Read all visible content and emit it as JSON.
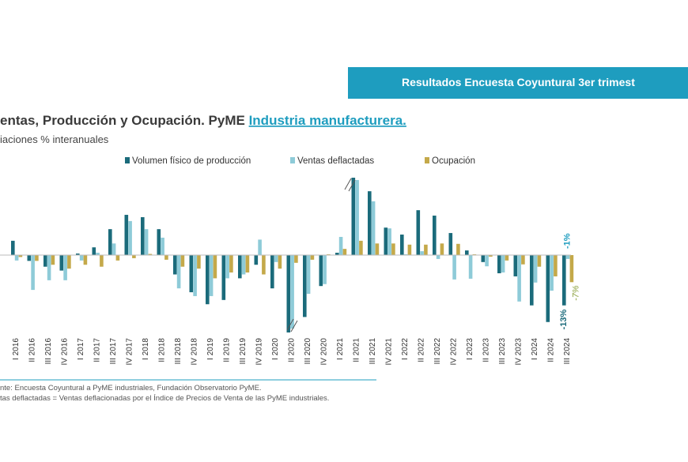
{
  "header": "Resultados Encuesta Coyuntural 3er trimest",
  "chart_data": {
    "type": "bar",
    "title": "entas, Producción y Ocupación. PyME ",
    "title_link": "Industria manufacturera.",
    "subtitle": "iaciones % interanuales",
    "categories": [
      "I 2016",
      "II 2016",
      "III 2016",
      "IV 2016",
      "I 2017",
      "II 2017",
      "III 2017",
      "IV 2017",
      "I 2018",
      "II 2018",
      "III 2018",
      "IV 2018",
      "I 2019",
      "II 2019",
      "III 2019",
      "IV 2019",
      "I 2020",
      "II 2020",
      "III 2020",
      "IV 2020",
      "I 2021",
      "II 2021",
      "III 2021",
      "IV 2021",
      "I 2022",
      "II 2022",
      "III 2022",
      "IV 2022",
      "I 2023",
      "II 2023",
      "III 2023",
      "IV 2023",
      "I 2024",
      "II 2024",
      "III 2024"
    ],
    "series": [
      {
        "name": "Volumen físico de producción",
        "color": "#1b6b7b",
        "values": [
          3.7,
          -1.5,
          -3,
          -4,
          0.4,
          2,
          6.7,
          10.4,
          9.8,
          6.7,
          -5,
          -9.6,
          -12.7,
          -11.6,
          -6,
          -2.5,
          -8.6,
          -20,
          -16,
          -8,
          0.6,
          20,
          16.5,
          7.1,
          5.3,
          11.6,
          10.2,
          5.7,
          1.2,
          -1.8,
          -4.7,
          -5.5,
          -13,
          -17.3,
          -13
        ],
        "value_labels": [
          null,
          null,
          null,
          null,
          null,
          null,
          null,
          null,
          null,
          null,
          null,
          null,
          null,
          null,
          null,
          null,
          null,
          null,
          null,
          null,
          null,
          null,
          null,
          null,
          null,
          null,
          null,
          null,
          null,
          null,
          null,
          null,
          null,
          null,
          "-13%"
        ]
      },
      {
        "name": "Ventas deflactadas",
        "color": "#8ecbd8",
        "values": [
          -1.4,
          -9,
          -6.5,
          -6.5,
          -1.4,
          0.6,
          3,
          8.8,
          6.7,
          4.5,
          -8.6,
          -10.6,
          -10.6,
          -6,
          -5,
          4,
          -1.8,
          -19,
          -10,
          -7.5,
          4.7,
          19.4,
          13.9,
          6.9,
          0.2,
          1,
          -1,
          -6.3,
          -6.1,
          -2.9,
          -4.5,
          -12,
          -7.1,
          -9.2,
          -1
        ],
        "value_labels": [
          null,
          null,
          null,
          null,
          null,
          null,
          null,
          null,
          null,
          null,
          null,
          null,
          null,
          null,
          null,
          null,
          null,
          null,
          null,
          null,
          null,
          null,
          null,
          null,
          null,
          null,
          null,
          null,
          null,
          null,
          null,
          null,
          null,
          null,
          "-1%"
        ]
      },
      {
        "name": "Ocupación",
        "color": "#c4a94a",
        "values": [
          -0.5,
          -1.5,
          -2.5,
          -3.5,
          -2.5,
          -3,
          -1.4,
          -0.8,
          0.3,
          -1.2,
          -3,
          -3.5,
          -6,
          -4.5,
          -4.5,
          -5,
          -3.5,
          -2,
          -1.2,
          0.2,
          1.6,
          3.7,
          3,
          3,
          2.7,
          2.7,
          3,
          2.9,
          0.2,
          -0.4,
          -1.4,
          -2.4,
          -3,
          -5.5,
          -7
        ],
        "value_labels": [
          null,
          null,
          null,
          null,
          null,
          null,
          null,
          null,
          null,
          null,
          null,
          null,
          null,
          null,
          null,
          null,
          null,
          null,
          null,
          null,
          null,
          null,
          null,
          null,
          null,
          null,
          null,
          null,
          null,
          null,
          null,
          null,
          null,
          null,
          "-7%"
        ]
      }
    ],
    "ylim": [
      -20,
      20
    ],
    "grid": false
  },
  "footnotes": [
    "nte: Encuesta Coyuntural a PyME industriales, Fundación Observatorio PyME.",
    "tas deflactadas = Ventas deflacionadas por el Índice de Precios de Venta de las PyME industriales."
  ]
}
